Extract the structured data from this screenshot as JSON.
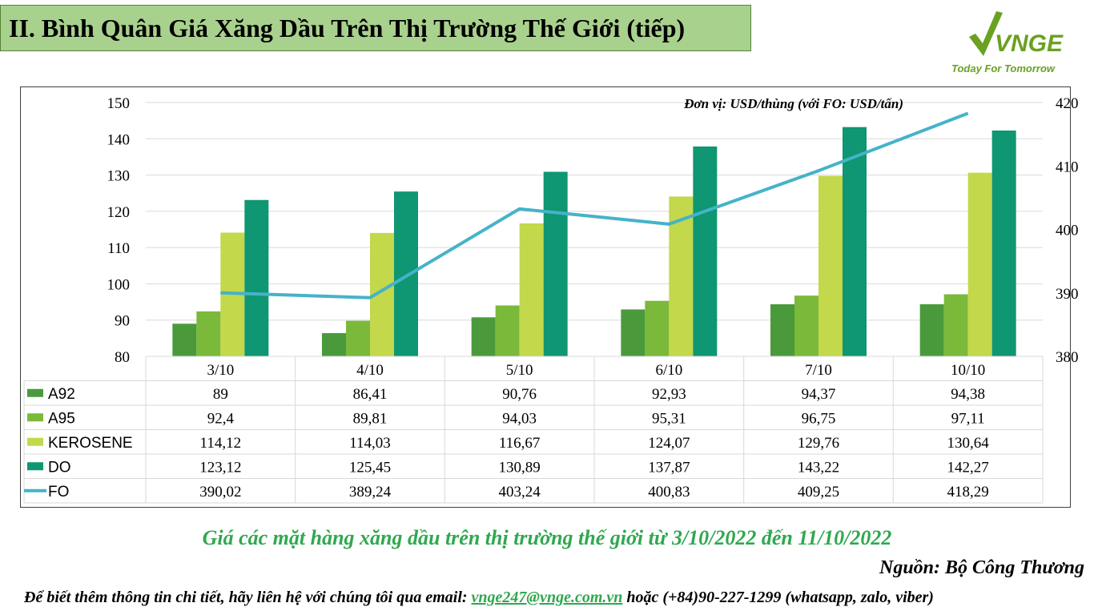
{
  "header": {
    "title": "II. Bình Quân Giá Xăng Dầu Trên Thị Trường Thế Giới (tiếp)"
  },
  "logo": {
    "wordmark": "VNGE",
    "tagline": "Today For Tomorrow",
    "color": "#6aa121"
  },
  "chart_data": {
    "type": "bar",
    "unit_note": "Đơn vị: USD/thùng (với FO: USD/tấn)",
    "categories": [
      "3/10",
      "4/10",
      "5/10",
      "6/10",
      "7/10",
      "10/10"
    ],
    "y_left": {
      "min": 80,
      "max": 150,
      "ticks": [
        "80",
        "90",
        "100",
        "110",
        "120",
        "130",
        "140",
        "150"
      ]
    },
    "y_right": {
      "min": 380,
      "max": 420,
      "ticks": [
        "380",
        "390",
        "400",
        "410",
        "420"
      ]
    },
    "series": [
      {
        "name": "A92",
        "type": "bar",
        "axis": "left",
        "color": "#4a9a3c",
        "values": [
          89,
          86.41,
          90.76,
          92.93,
          94.37,
          94.38
        ],
        "labels": [
          "89",
          "86,41",
          "90,76",
          "92,93",
          "94,37",
          "94,38"
        ]
      },
      {
        "name": "A95",
        "type": "bar",
        "axis": "left",
        "color": "#7ab93a",
        "values": [
          92.4,
          89.81,
          94.03,
          95.31,
          96.75,
          97.11
        ],
        "labels": [
          "92,4",
          "89,81",
          "94,03",
          "95,31",
          "96,75",
          "97,11"
        ]
      },
      {
        "name": "KEROSENE",
        "type": "bar",
        "axis": "left",
        "color": "#c3d84a",
        "values": [
          114.12,
          114.03,
          116.67,
          124.07,
          129.76,
          130.64
        ],
        "labels": [
          "114,12",
          "114,03",
          "116,67",
          "124,07",
          "129,76",
          "130,64"
        ]
      },
      {
        "name": "DO",
        "type": "bar",
        "axis": "left",
        "color": "#0f9672",
        "values": [
          123.12,
          125.45,
          130.89,
          137.87,
          143.22,
          142.27
        ],
        "labels": [
          "123,12",
          "125,45",
          "130,89",
          "137,87",
          "143,22",
          "142,27"
        ]
      },
      {
        "name": "FO",
        "type": "line",
        "axis": "right",
        "color": "#45b3c8",
        "values": [
          390.02,
          389.24,
          403.24,
          400.83,
          409.25,
          418.29
        ],
        "labels": [
          "390,02",
          "389,24",
          "403,24",
          "400,83",
          "409,25",
          "418,29"
        ]
      }
    ]
  },
  "footer": {
    "caption": "Giá các mặt hàng xăng dầu trên thị trường thế giới từ 3/10/2022 đến 11/10/2022",
    "source": "Nguồn: Bộ Công Thương",
    "contact_prefix": "Để biết thêm thông tin chi tiết, hãy liên hệ với chúng tôi qua email: ",
    "email": "vnge247@vnge.com.vn",
    "contact_suffix": " hoặc (+84)90-227-1299 (whatsapp, zalo, viber)"
  }
}
